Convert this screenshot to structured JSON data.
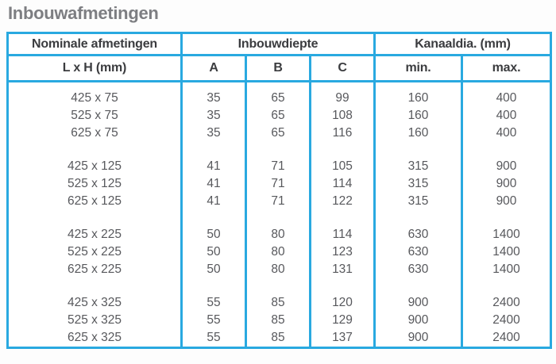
{
  "title": "Inbouwafmetingen",
  "colors": {
    "border_blue": "#29a9e0",
    "title_gray": "#7d7e82",
    "header_text": "#3b3c3f",
    "body_text": "#57585c"
  },
  "table": {
    "header_groups": [
      {
        "label": "Nominale afmetingen"
      },
      {
        "label": "Inbouwdiepte"
      },
      {
        "label": "Kanaaldia. (mm)"
      }
    ],
    "sub_headers": [
      "L x H (mm)",
      "A",
      "B",
      "C",
      "min.",
      "max."
    ],
    "groups": [
      {
        "rows": [
          {
            "lxh": "425 x 75",
            "a": "35",
            "b": "65",
            "c": "99",
            "min": "160",
            "max": "400"
          },
          {
            "lxh": "525 x 75",
            "a": "35",
            "b": "65",
            "c": "108",
            "min": "160",
            "max": "400"
          },
          {
            "lxh": "625 x 75",
            "a": "35",
            "b": "65",
            "c": "116",
            "min": "160",
            "max": "400"
          }
        ]
      },
      {
        "rows": [
          {
            "lxh": "425 x 125",
            "a": "41",
            "b": "71",
            "c": "105",
            "min": "315",
            "max": "900"
          },
          {
            "lxh": "525 x 125",
            "a": "41",
            "b": "71",
            "c": "114",
            "min": "315",
            "max": "900"
          },
          {
            "lxh": "625 x 125",
            "a": "41",
            "b": "71",
            "c": "122",
            "min": "315",
            "max": "900"
          }
        ]
      },
      {
        "rows": [
          {
            "lxh": "425 x 225",
            "a": "50",
            "b": "80",
            "c": "114",
            "min": "630",
            "max": "1400"
          },
          {
            "lxh": "525 x 225",
            "a": "50",
            "b": "80",
            "c": "123",
            "min": "630",
            "max": "1400"
          },
          {
            "lxh": "625 x 225",
            "a": "50",
            "b": "80",
            "c": "131",
            "min": "630",
            "max": "1400"
          }
        ]
      },
      {
        "rows": [
          {
            "lxh": "425 x 325",
            "a": "55",
            "b": "85",
            "c": "120",
            "min": "900",
            "max": "2400"
          },
          {
            "lxh": "525 x 325",
            "a": "55",
            "b": "85",
            "c": "129",
            "min": "900",
            "max": "2400"
          },
          {
            "lxh": "625 x 325",
            "a": "55",
            "b": "85",
            "c": "137",
            "min": "900",
            "max": "2400"
          }
        ]
      }
    ]
  }
}
